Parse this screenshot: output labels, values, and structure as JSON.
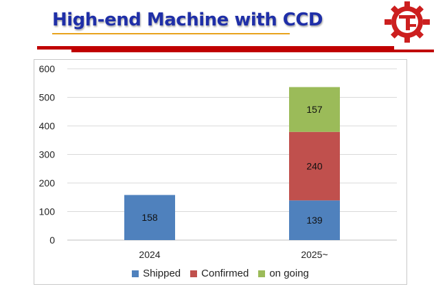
{
  "slide": {
    "title": "High-end Machine with CCD"
  },
  "colors": {
    "shipped": "#4f81bd",
    "confirmed": "#c0504d",
    "on_going": "#9bbb59",
    "title": "#1f2fa8",
    "accent_red": "#c00000"
  },
  "chart_data": {
    "type": "bar",
    "stacked": true,
    "categories": [
      "2024",
      "2025~"
    ],
    "series": [
      {
        "name": "Shipped",
        "values": [
          158,
          139
        ]
      },
      {
        "name": "Confirmed",
        "values": [
          0,
          240
        ]
      },
      {
        "name": "on going",
        "values": [
          0,
          157
        ]
      }
    ],
    "ylim": [
      0,
      600
    ],
    "yticks": [
      0,
      100,
      200,
      300,
      400,
      500,
      600
    ],
    "grid": true,
    "legend": "bottom",
    "title": "",
    "xlabel": "",
    "ylabel": ""
  }
}
